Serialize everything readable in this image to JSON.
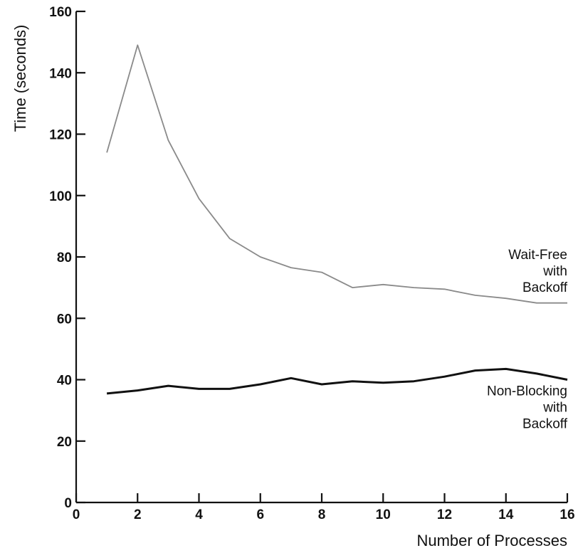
{
  "chart_data": {
    "type": "line",
    "xlabel": "Number of Processes",
    "ylabel": "Time (seconds)",
    "xlim": [
      0,
      16
    ],
    "ylim": [
      0,
      160
    ],
    "xticks": [
      0,
      2,
      4,
      6,
      8,
      10,
      12,
      14,
      16
    ],
    "yticks": [
      0,
      20,
      40,
      60,
      80,
      100,
      120,
      140,
      160
    ],
    "grid": false,
    "x": [
      1,
      2,
      3,
      4,
      5,
      6,
      7,
      8,
      9,
      10,
      11,
      12,
      13,
      14,
      15,
      16
    ],
    "series": [
      {
        "name": "Wait-Free with Backoff",
        "label_lines": [
          "Wait-Free",
          "with",
          "Backoff"
        ],
        "color": "#8a8a8a",
        "values": [
          114,
          149,
          118,
          99,
          86,
          80,
          76.5,
          75,
          70,
          71,
          70,
          69.5,
          67.5,
          66.5,
          65,
          65
        ]
      },
      {
        "name": "Non-Blocking with Backoff",
        "label_lines": [
          "Non-Blocking",
          "with",
          "Backoff"
        ],
        "color": "#111111",
        "values": [
          35.5,
          36.5,
          38,
          37,
          37,
          38.5,
          40.5,
          38.5,
          39.5,
          39,
          39.5,
          41,
          43,
          43.5,
          42,
          40
        ]
      }
    ]
  }
}
